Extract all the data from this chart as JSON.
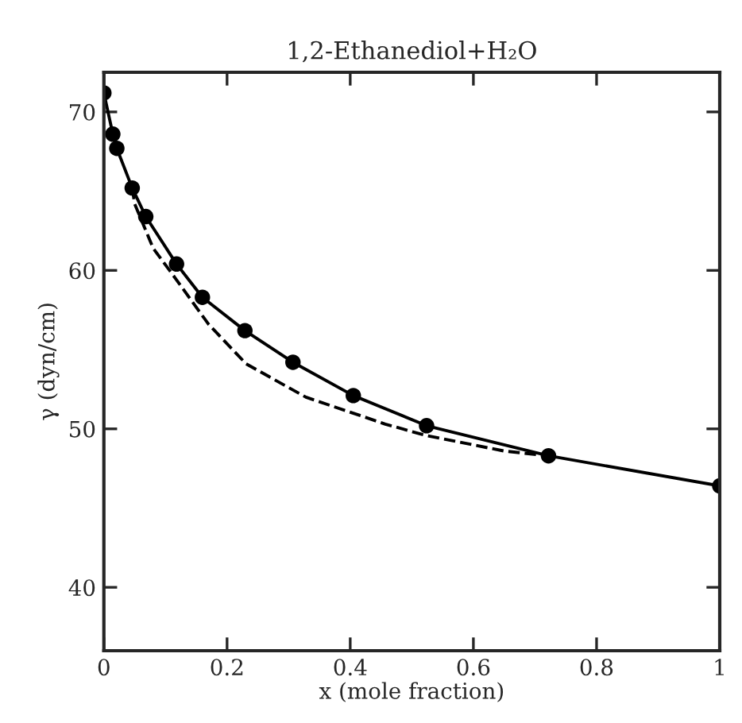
{
  "chart_data": {
    "type": "line",
    "title": "1,2-Ethanediol+H₂O",
    "xlabel": "x (mole fraction)",
    "ylabel": "γ (dyn/cm)",
    "xlim": [
      0,
      1
    ],
    "ylim": [
      36,
      72.5
    ],
    "xticks": [
      0,
      0.2,
      0.4,
      0.6,
      0.8,
      1
    ],
    "yticks": [
      40,
      50,
      60,
      70
    ],
    "grid": false,
    "series": [
      {
        "color": "#000000",
        "marker": "circle",
        "line_style": "solid",
        "x": [
          0,
          0.0145,
          0.021,
          0.046,
          0.068,
          0.118,
          0.16,
          0.229,
          0.307,
          0.405,
          0.524,
          0.722,
          1.0
        ],
        "values": [
          71.2,
          68.6,
          67.7,
          65.2,
          63.4,
          60.4,
          58.3,
          56.2,
          54.2,
          52.1,
          50.2,
          48.3,
          46.4
        ]
      },
      {
        "color": "#000000",
        "marker": "none",
        "line_style": "dashed",
        "x": [
          0.046,
          0.05,
          0.08,
          0.118,
          0.17,
          0.231,
          0.328,
          0.457,
          0.521,
          0.65,
          0.722
        ],
        "values": [
          65.2,
          64.2,
          61.4,
          59.4,
          56.6,
          54.1,
          52.0,
          50.3,
          49.6,
          48.6,
          48.3
        ]
      }
    ]
  }
}
